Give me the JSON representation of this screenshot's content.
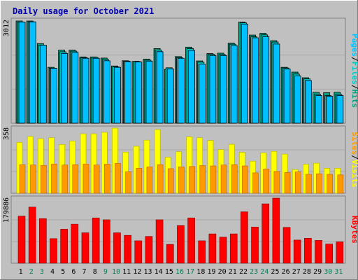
{
  "title": "Daily usage for October 2021",
  "colors": {
    "background": "#c0c0c0",
    "title": "#0000b0",
    "pages": "#00c0ff",
    "files": "#00c8c8",
    "hits": "#00a080",
    "visits": "#ffff00",
    "sites": "#ff9900",
    "kbytes": "#ff0000",
    "weekend_day_label": "#00805a",
    "weekday_day_label": "#000000"
  },
  "chart_data": [
    {
      "type": "bar",
      "panel": "hits-files-pages",
      "ymax_label": "3012",
      "ylim": [
        0,
        3012
      ],
      "legend": [
        {
          "label": "Pages",
          "color_key": "pages"
        },
        {
          "label": "Files",
          "color_key": "files"
        },
        {
          "label": "Hits",
          "color_key": "hits"
        }
      ],
      "categories": [
        "1",
        "2",
        "3",
        "4",
        "5",
        "6",
        "7",
        "8",
        "9",
        "10",
        "11",
        "12",
        "13",
        "14",
        "15",
        "16",
        "17",
        "18",
        "19",
        "20",
        "21",
        "22",
        "23",
        "24",
        "25",
        "26",
        "27",
        "28",
        "29",
        "30",
        "31"
      ],
      "series": [
        {
          "name": "Hits",
          "values": [
            3012,
            3012,
            2347,
            1647,
            2154,
            2154,
            1953,
            1953,
            1920,
            1686,
            1841,
            1825,
            1890,
            2199,
            1586,
            1963,
            2242,
            1835,
            2052,
            2064,
            2362,
            2982,
            2598,
            2649,
            2432,
            1647,
            1506,
            1340,
            912,
            899,
            912
          ]
        },
        {
          "name": "Files",
          "values": [
            2983,
            2987,
            2300,
            1619,
            2104,
            2123,
            1933,
            1942,
            1879,
            1659,
            1830,
            1817,
            1858,
            2159,
            1633,
            1931,
            2199,
            1799,
            2030,
            2026,
            2328,
            2959,
            2546,
            2603,
            2392,
            1626,
            1448,
            1307,
            847,
            814,
            847
          ]
        },
        {
          "name": "Pages",
          "values": [
            2983,
            2987,
            2300,
            1619,
            2055,
            2087,
            1914,
            1914,
            1840,
            1647,
            1817,
            1806,
            1830,
            2108,
            1598,
            1914,
            2146,
            1743,
            1994,
            1994,
            2288,
            2923,
            2517,
            2549,
            2333,
            1598,
            1397,
            1255,
            815,
            794,
            815
          ]
        }
      ]
    },
    {
      "type": "bar",
      "panel": "visits-sites",
      "ymax_label": "358",
      "ylim": [
        0,
        358
      ],
      "legend": [
        {
          "label": "Sites",
          "color_key": "sites"
        },
        {
          "label": "Visits",
          "color_key": "visits"
        }
      ],
      "categories": [
        "1",
        "2",
        "3",
        "4",
        "5",
        "6",
        "7",
        "8",
        "9",
        "10",
        "11",
        "12",
        "13",
        "14",
        "15",
        "16",
        "17",
        "18",
        "19",
        "20",
        "21",
        "22",
        "23",
        "24",
        "25",
        "26",
        "27",
        "28",
        "29",
        "30",
        "31"
      ],
      "series": [
        {
          "name": "Visits",
          "values": [
            280,
            312,
            300,
            305,
            268,
            287,
            327,
            327,
            335,
            358,
            226,
            258,
            292,
            350,
            198,
            228,
            310,
            305,
            290,
            240,
            269,
            225,
            176,
            222,
            230,
            215,
            130,
            159,
            165,
            137,
            137
          ]
        },
        {
          "name": "Sites",
          "values": [
            157,
            155,
            153,
            160,
            155,
            157,
            160,
            155,
            160,
            164,
            118,
            137,
            145,
            157,
            135,
            145,
            147,
            152,
            150,
            155,
            157,
            150,
            112,
            133,
            120,
            114,
            117,
            104,
            107,
            104,
            101
          ]
        }
      ]
    },
    {
      "type": "bar",
      "panel": "kbytes",
      "ymax_label": "179886",
      "ylim": [
        0,
        179886
      ],
      "legend": [
        {
          "label": "KBytes",
          "color_key": "kbytes"
        }
      ],
      "categories": [
        "1",
        "2",
        "3",
        "4",
        "5",
        "6",
        "7",
        "8",
        "9",
        "10",
        "11",
        "12",
        "13",
        "14",
        "15",
        "16",
        "17",
        "18",
        "19",
        "20",
        "21",
        "22",
        "23",
        "24",
        "25",
        "26",
        "27",
        "28",
        "29",
        "30",
        "31"
      ],
      "series": [
        {
          "name": "KBytes",
          "values": [
            130000,
            155000,
            123000,
            68000,
            94000,
            108000,
            84000,
            125000,
            120000,
            84000,
            77000,
            62000,
            74000,
            120000,
            52000,
            104000,
            125000,
            62000,
            81000,
            72000,
            81000,
            142000,
            100000,
            164000,
            179886,
            99000,
            64000,
            69000,
            63000,
            53000,
            59000
          ]
        }
      ]
    }
  ],
  "day_labels": [
    "1",
    "2",
    "3",
    "4",
    "5",
    "6",
    "7",
    "8",
    "9",
    "10",
    "11",
    "12",
    "13",
    "14",
    "15",
    "16",
    "17",
    "18",
    "19",
    "20",
    "21",
    "22",
    "23",
    "24",
    "25",
    "26",
    "27",
    "28",
    "29",
    "30",
    "31"
  ],
  "weekend_days": [
    "2",
    "3",
    "9",
    "10",
    "16",
    "17",
    "23",
    "24",
    "30",
    "31"
  ]
}
